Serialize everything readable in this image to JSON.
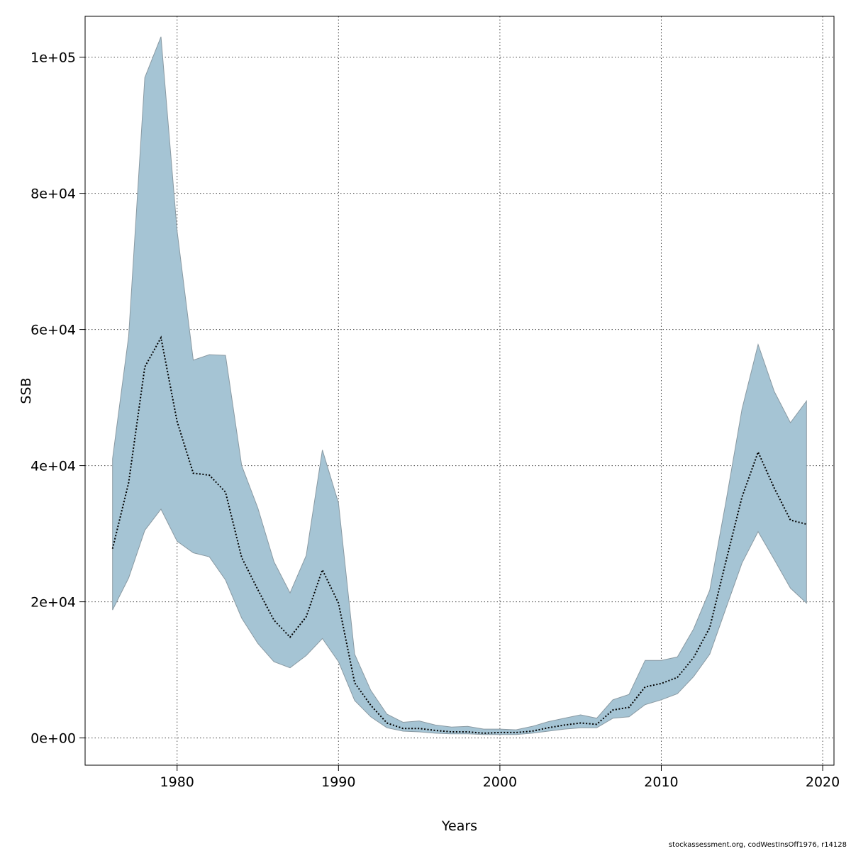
{
  "chart_data": {
    "type": "area",
    "xlabel": "Years",
    "ylabel": "SSB",
    "xlim": [
      1974.3,
      2020.7
    ],
    "ylim": [
      -4000,
      106000
    ],
    "x_ticks": [
      1980,
      1990,
      2000,
      2010,
      2020
    ],
    "x_tick_labels": [
      "1980",
      "1990",
      "2000",
      "2010",
      "2020"
    ],
    "y_ticks": [
      0,
      20000,
      40000,
      60000,
      80000,
      100000
    ],
    "y_tick_labels": [
      "0e+00",
      "2e+04",
      "4e+04",
      "6e+04",
      "8e+04",
      "1e+05"
    ],
    "grid": true,
    "band_color": "#a5c4d4",
    "band_edge_color": "#8a9aa3",
    "line_color": "#000000",
    "years": [
      1976,
      1977,
      1978,
      1979,
      1980,
      1981,
      1982,
      1983,
      1984,
      1985,
      1986,
      1987,
      1988,
      1989,
      1990,
      1991,
      1992,
      1993,
      1994,
      1995,
      1996,
      1997,
      1998,
      1999,
      2000,
      2001,
      2002,
      2003,
      2004,
      2005,
      2006,
      2007,
      2008,
      2009,
      2010,
      2011,
      2012,
      2013,
      2014,
      2015,
      2016,
      2017,
      2018,
      2019
    ],
    "series": [
      {
        "name": "estimate",
        "values": [
          27800,
          37500,
          54500,
          58800,
          46500,
          38900,
          38600,
          36100,
          26500,
          21800,
          17300,
          14800,
          17800,
          24700,
          19800,
          8100,
          4800,
          2200,
          1400,
          1400,
          1100,
          900,
          900,
          700,
          800,
          800,
          1000,
          1500,
          1900,
          2200,
          2000,
          4100,
          4500,
          7500,
          8000,
          8900,
          11800,
          16200,
          25900,
          35400,
          42000,
          36700,
          32000,
          31400
        ]
      },
      {
        "name": "upper",
        "values": [
          41000,
          59000,
          97000,
          103000,
          74500,
          55500,
          56300,
          56200,
          40000,
          33800,
          25900,
          21300,
          26800,
          42300,
          34500,
          12300,
          7000,
          3500,
          2300,
          2500,
          1900,
          1600,
          1700,
          1300,
          1300,
          1200,
          1700,
          2400,
          2900,
          3400,
          2900,
          5600,
          6400,
          11400,
          11400,
          11900,
          16000,
          21700,
          34600,
          48300,
          57800,
          50900,
          46300,
          49500
        ]
      },
      {
        "name": "lower",
        "values": [
          18800,
          23500,
          30500,
          33600,
          28900,
          27200,
          26600,
          23200,
          17600,
          13900,
          11200,
          10300,
          12100,
          14600,
          11200,
          5500,
          3100,
          1500,
          1000,
          900,
          700,
          600,
          600,
          500,
          500,
          500,
          700,
          1000,
          1300,
          1500,
          1500,
          2900,
          3100,
          4900,
          5600,
          6500,
          9000,
          12300,
          19000,
          25700,
          30300,
          26200,
          22000,
          19800
        ]
      }
    ]
  },
  "credit": "stockassessment.org, codWestInsOff1976, r14128"
}
